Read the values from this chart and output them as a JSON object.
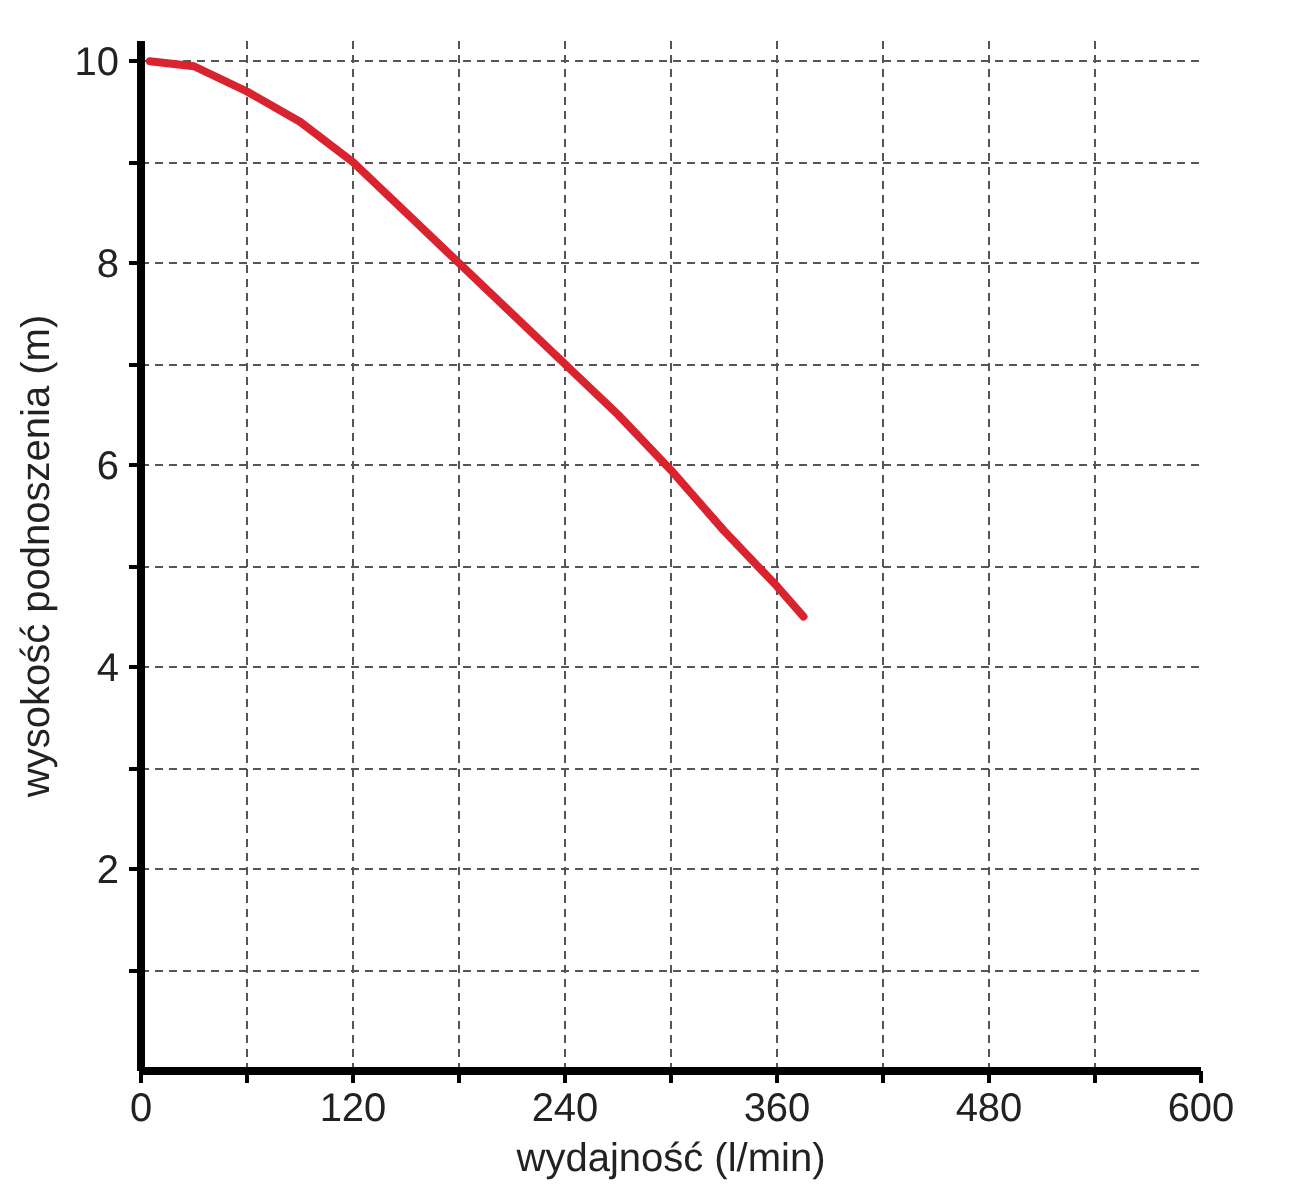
{
  "chart_data": {
    "type": "line",
    "xlabel": "wydajność (l/min)",
    "ylabel": "wysokość podnoszenia (m)",
    "x": [
      5,
      30,
      60,
      90,
      120,
      150,
      180,
      210,
      240,
      270,
      300,
      330,
      360,
      375
    ],
    "series": [
      {
        "color": "#d9232e",
        "values": [
          10,
          9.95,
          9.7,
          9.4,
          9.0,
          8.5,
          8.0,
          7.5,
          7.0,
          6.5,
          5.95,
          5.35,
          4.8,
          4.5
        ]
      }
    ],
    "xlim": [
      0,
      600
    ],
    "ylim": [
      0,
      10.2
    ],
    "xticks": [
      0,
      {
        "value": 60,
        "label": null
      },
      120,
      {
        "value": 180,
        "label": null
      },
      240,
      {
        "value": 300,
        "label": null
      },
      360,
      {
        "value": 420,
        "label": null
      },
      480,
      {
        "value": 540,
        "label": null
      },
      600
    ],
    "yticks": [
      {
        "value": 1,
        "label": null
      },
      2,
      {
        "value": 3,
        "label": null
      },
      4,
      {
        "value": 5,
        "label": null
      },
      6,
      {
        "value": 7,
        "label": null
      },
      8,
      {
        "value": 9,
        "label": null
      },
      10
    ],
    "grid": true,
    "line_style": "solid",
    "marker": "none"
  }
}
